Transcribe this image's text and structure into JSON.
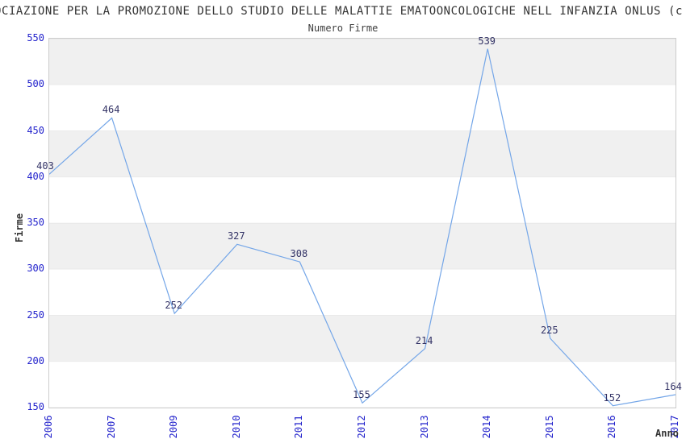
{
  "page": {
    "title_visible": "OCIAZIONE PER LA PROMOZIONE DELLO STUDIO DELLE MALATTIE EMATOONCOLOGICHE NELL INFANZIA ONLUS (c",
    "subtitle": "Numero Firme"
  },
  "chart_data": {
    "type": "line",
    "title": "Numero Firme",
    "xlabel": "Anno",
    "ylabel": "Firme",
    "x": [
      "2006",
      "2007",
      "2009",
      "2010",
      "2011",
      "2012",
      "2013",
      "2014",
      "2015",
      "2016",
      "2017"
    ],
    "series": [
      {
        "name": "Numero Firme",
        "values": [
          403,
          464,
          252,
          327,
          308,
          155,
          214,
          539,
          225,
          152,
          164
        ]
      }
    ],
    "ylim": [
      150,
      550
    ],
    "ytick_step": 50,
    "yticks": [
      150,
      200,
      250,
      300,
      350,
      400,
      450,
      500,
      550
    ],
    "grid": "alternating-horizontal-bands",
    "legend_position": "none",
    "data_labels_shown": true,
    "colors": {
      "line": "#74a6e8",
      "axis_tick_label": "#2222cc",
      "data_label": "#333366",
      "band_gray": "#f0f0f0",
      "plot_border": "#cccccc",
      "text": "#333333",
      "background": "#ffffff"
    }
  }
}
